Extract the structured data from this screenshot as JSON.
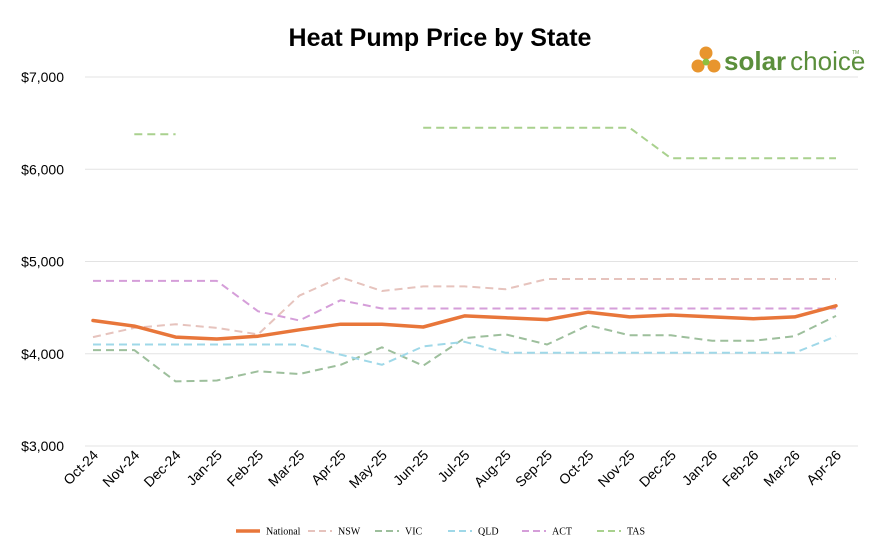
{
  "logo": {
    "word_bold": "solar",
    "word_light": "choice",
    "tm": "TM",
    "color_text": "#5b8f3c",
    "color_orange": "#e8952e",
    "color_green": "#8fbf3f"
  },
  "chart_data": {
    "type": "line",
    "title": "Heat Pump Price by State",
    "xlabel": "",
    "ylabel": "",
    "ylim": [
      3000,
      7000
    ],
    "yticks": [
      3000,
      4000,
      5000,
      6000,
      7000
    ],
    "ytick_labels": [
      "$3,000",
      "$4,000",
      "$5,000",
      "$6,000",
      "$7,000"
    ],
    "grid": true,
    "legend_position": "bottom",
    "categories": [
      "Oct-24",
      "Nov-24",
      "Dec-24",
      "Jan-25",
      "Feb-25",
      "Mar-25",
      "Apr-25",
      "May-25",
      "Jun-25",
      "Jul-25",
      "Aug-25",
      "Sep-25",
      "Oct-25",
      "Nov-25",
      "Dec-25",
      "Jan-26",
      "Feb-26",
      "Mar-26",
      "Apr-26"
    ],
    "series": [
      {
        "name": "TAS",
        "color": "#a9d18e",
        "dash": true,
        "width": 2,
        "values": [
          null,
          6380,
          6380,
          null,
          null,
          null,
          null,
          null,
          6450,
          6450,
          6450,
          6450,
          6450,
          6450,
          6120,
          6120,
          6120,
          6120,
          6120
        ]
      },
      {
        "name": "NSW",
        "color": "#e6c3bd",
        "dash": true,
        "width": 2,
        "values": [
          4180,
          4280,
          4320,
          4280,
          4210,
          4630,
          4830,
          4680,
          4730,
          4730,
          4700,
          4810,
          4810,
          4810,
          4810,
          4810,
          4810,
          4810,
          4810
        ]
      },
      {
        "name": "ACT",
        "color": "#d59ed9",
        "dash": true,
        "width": 2,
        "values": [
          4790,
          4790,
          4790,
          4790,
          4460,
          4360,
          4580,
          4490,
          4490,
          4490,
          4490,
          4490,
          4490,
          4490,
          4490,
          4490,
          4490,
          4490,
          4490
        ]
      },
      {
        "name": "VIC",
        "color": "#9dbf9c",
        "dash": true,
        "width": 2,
        "values": [
          4040,
          4040,
          3700,
          3710,
          3810,
          3780,
          3880,
          4070,
          3870,
          4170,
          4210,
          4100,
          4310,
          4200,
          4200,
          4140,
          4140,
          4190,
          4410
        ]
      },
      {
        "name": "QLD",
        "color": "#9fd8e8",
        "dash": true,
        "width": 2,
        "values": [
          4100,
          4100,
          4100,
          4100,
          4100,
          4100,
          3990,
          3880,
          4080,
          4130,
          4010,
          4010,
          4010,
          4010,
          4010,
          4010,
          4010,
          4010,
          4190
        ]
      },
      {
        "name": "National",
        "color": "#e8763a",
        "dash": false,
        "width": 3.5,
        "values": [
          4360,
          4300,
          4180,
          4160,
          4190,
          4260,
          4320,
          4320,
          4290,
          4410,
          4390,
          4370,
          4450,
          4400,
          4420,
          4400,
          4380,
          4400,
          4520
        ]
      }
    ],
    "legend_order": [
      "National",
      "NSW",
      "VIC",
      "QLD",
      "ACT",
      "TAS"
    ]
  }
}
